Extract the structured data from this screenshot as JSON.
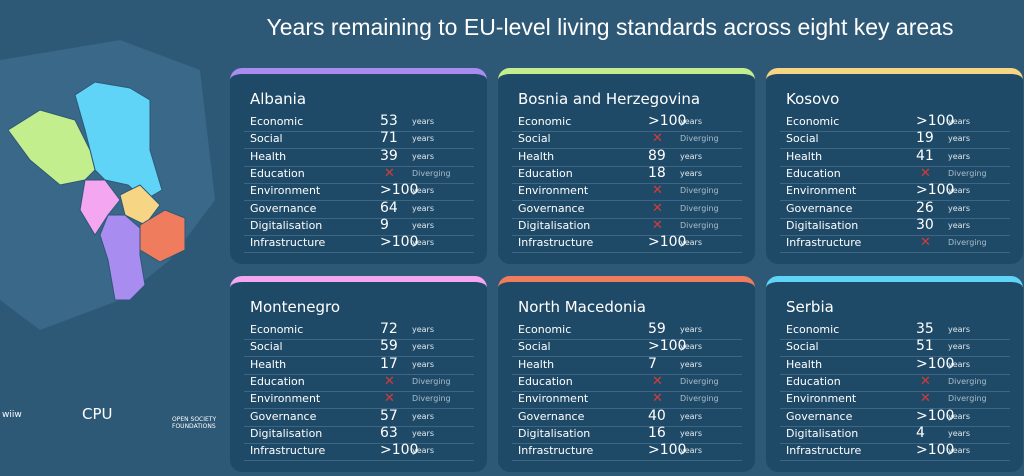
{
  "title": "Years remaining to EU-level living standards across eight key areas",
  "logos": [
    "wiiw",
    "CPU",
    "OPEN SOCIETY FOUNDATIONS"
  ],
  "cards": [
    {
      "name": "Albania",
      "color": "#a98cf0",
      "rows": [
        {
          "area": "Economic",
          "value": 53,
          "unit": "years"
        },
        {
          "area": "Social",
          "value": 71,
          "unit": "years"
        },
        {
          "area": "Health",
          "value": 39,
          "unit": "years"
        },
        {
          "area": "Education",
          "status": "Diverging"
        },
        {
          "area": "Environment",
          "value": ">100",
          "unit": "years"
        },
        {
          "area": "Governance",
          "value": 64,
          "unit": "years"
        },
        {
          "area": "Digitalisation",
          "value": 9,
          "unit": "years"
        },
        {
          "area": "Infrastructure",
          "value": ">100",
          "unit": "years"
        }
      ]
    },
    {
      "name": "Bosnia and Herzegovina",
      "color": "#c3ee8d",
      "rows": [
        {
          "area": "Economic",
          "value": ">100",
          "unit": "years"
        },
        {
          "area": "Social",
          "status": "Diverging"
        },
        {
          "area": "Health",
          "value": 89,
          "unit": "years"
        },
        {
          "area": "Education",
          "value": 18,
          "unit": "years"
        },
        {
          "area": "Environment",
          "status": "Diverging"
        },
        {
          "area": "Governance",
          "status": "Diverging"
        },
        {
          "area": "Digitalisation",
          "status": "Diverging"
        },
        {
          "area": "Infrastructure",
          "value": ">100",
          "unit": "years"
        }
      ]
    },
    {
      "name": "Kosovo",
      "color": "#f6d584",
      "rows": [
        {
          "area": "Economic",
          "value": ">100",
          "unit": "years"
        },
        {
          "area": "Social",
          "value": 19,
          "unit": "years"
        },
        {
          "area": "Health",
          "value": 41,
          "unit": "years"
        },
        {
          "area": "Education",
          "status": "Diverging"
        },
        {
          "area": "Environment",
          "value": ">100",
          "unit": "years"
        },
        {
          "area": "Governance",
          "value": 26,
          "unit": "years"
        },
        {
          "area": "Digitalisation",
          "value": 30,
          "unit": "years"
        },
        {
          "area": "Infrastructure",
          "status": "Diverging"
        }
      ]
    },
    {
      "name": "Montenegro",
      "color": "#f5a6f1",
      "rows": [
        {
          "area": "Economic",
          "value": 72,
          "unit": "years"
        },
        {
          "area": "Social",
          "value": 59,
          "unit": "years"
        },
        {
          "area": "Health",
          "value": 17,
          "unit": "years"
        },
        {
          "area": "Education",
          "status": "Diverging"
        },
        {
          "area": "Environment",
          "status": "Diverging"
        },
        {
          "area": "Governance",
          "value": 57,
          "unit": "years"
        },
        {
          "area": "Digitalisation",
          "value": 63,
          "unit": "years"
        },
        {
          "area": "Infrastructure",
          "value": ">100",
          "unit": "years"
        }
      ]
    },
    {
      "name": "North Macedonia",
      "color": "#f07c5e",
      "rows": [
        {
          "area": "Economic",
          "value": 59,
          "unit": "years"
        },
        {
          "area": "Social",
          "value": ">100",
          "unit": "years"
        },
        {
          "area": "Health",
          "value": 7,
          "unit": "years"
        },
        {
          "area": "Education",
          "status": "Diverging"
        },
        {
          "area": "Environment",
          "status": "Diverging"
        },
        {
          "area": "Governance",
          "value": 40,
          "unit": "years"
        },
        {
          "area": "Digitalisation",
          "value": 16,
          "unit": "years"
        },
        {
          "area": "Infrastructure",
          "value": ">100",
          "unit": "years"
        }
      ]
    },
    {
      "name": "Serbia",
      "color": "#5fd4f7",
      "rows": [
        {
          "area": "Economic",
          "value": 35,
          "unit": "years"
        },
        {
          "area": "Social",
          "value": 51,
          "unit": "years"
        },
        {
          "area": "Health",
          "value": ">100",
          "unit": "years"
        },
        {
          "area": "Education",
          "status": "Diverging"
        },
        {
          "area": "Environment",
          "status": "Diverging"
        },
        {
          "area": "Governance",
          "value": ">100",
          "unit": "years"
        },
        {
          "area": "Digitalisation",
          "value": 4,
          "unit": "years"
        },
        {
          "area": "Infrastructure",
          "value": ">100",
          "unit": "years"
        }
      ]
    }
  ]
}
